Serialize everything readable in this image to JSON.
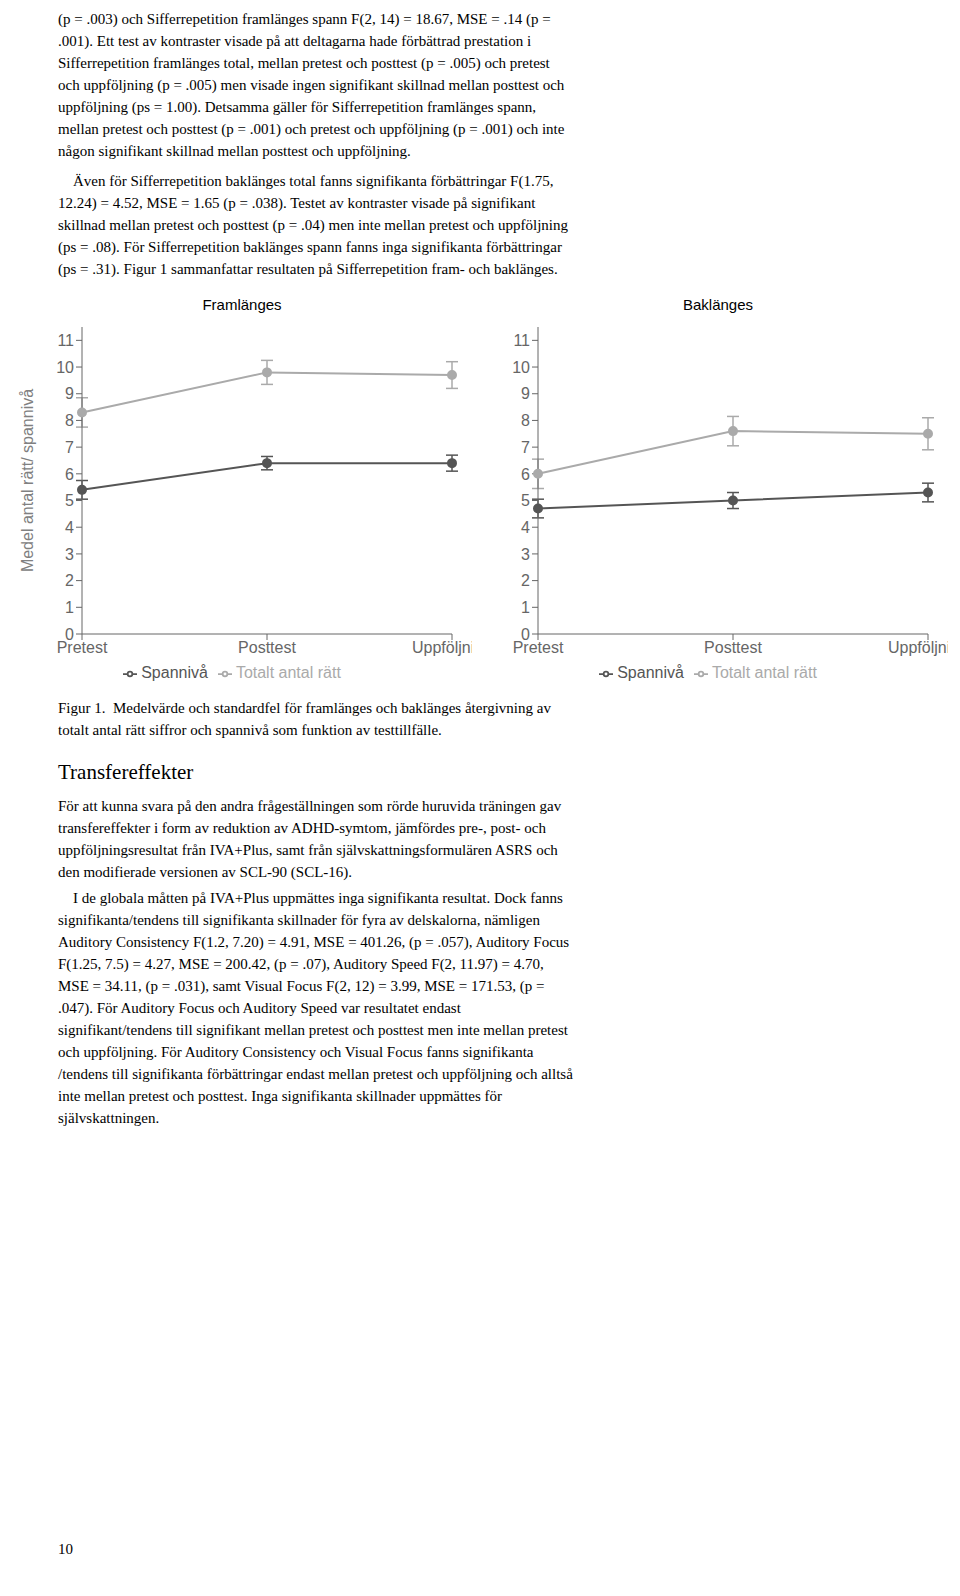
{
  "chart_data": [
    {
      "type": "line",
      "title": "Framlänges",
      "ylabel": "Medel antal rätt/ spannivå",
      "categories": [
        "Pretest",
        "Posttest",
        "Uppföljning"
      ],
      "series": [
        {
          "name": "Spannivå",
          "color": "#555555",
          "marker": "circle",
          "values": [
            5.4,
            6.4,
            6.4
          ],
          "errors": [
            0.35,
            0.25,
            0.3
          ]
        },
        {
          "name": "Totalt antal rätt",
          "color": "#aaaaaa",
          "marker": "circle",
          "values": [
            8.3,
            9.8,
            9.7
          ],
          "errors": [
            0.55,
            0.45,
            0.5
          ]
        }
      ],
      "ylim": [
        0,
        11.5
      ],
      "yticks": [
        0,
        1,
        2,
        3,
        4,
        5,
        6,
        7,
        8,
        9,
        10,
        11
      ],
      "grid": false,
      "legend": "lower center",
      "annotations": [
        "(p = .003) och Sifferrepetition framlänges spann F(2, 14) = 18.67, MSE = .14 (p =\n.001). Ett test av kontraster visade på att deltagarna hade förbättrad prestation i\nSifferrepetition framlänges total, mellan pretest och posttest (p = .005) och pretest\noch uppföljning (p = .005) men visade ingen signifikant skillnad mellan posttest och\nuppföljning (ps = 1.00). Detsamma gäller för Sifferrepetition framlänges spann,\nmellan pretest och posttest (p = .001) och pretest och uppföljning (p = .001) och inte\nnågon signifikant skillnad mellan posttest och uppföljning.",
        "    Även för Sifferrepetition baklänges total fanns signifikanta förbättringar F(1.75,\n12.24) = 4.52, MSE = 1.65 (p = .038). Testet av kontraster visade på signifikant\nskillnad mellan pretest och posttest (p = .04) men inte mellan pretest och uppföljning\n(ps = .08). För Sifferrepetition baklänges spann fanns inga signifikanta förbättringar\n(ps = .31). Figur 1 sammanfattar resultaten på Sifferrepetition fram- och baklänges.",
        "Figur 1.  Medelvärde och standardfel för framlänges och baklänges återgivning av\ntotalt antal rätt siffror och spannivå som funktion av testtillfälle.",
        "Transfereffekter",
        "För att kunna svara på den andra frågeställningen som rörde huruvida träningen gav\ntransfereffekter i form av reduktion av ADHD-symtom, jämfördes pre-, post- och\nuppföljningsresultat från IVA+Plus, samt från självskattningsformulären ASRS och\nden modifierade versionen av SCL-90 (SCL-16).",
        "    I de globala måtten på IVA+Plus uppmättes inga signifikanta resultat. Dock fanns\nsignifikanta/tendens till signifikanta skillnader för fyra av delskalorna, nämligen\nAuditory Consistency F(1.2, 7.20) = 4.91, MSE = 401.26, (p = .057), Auditory Focus\nF(1.25, 7.5) = 4.27, MSE = 200.42, (p = .07), Auditory Speed F(2, 11.97) = 4.70,\nMSE = 34.11, (p = .031), samt Visual Focus F(2, 12) = 3.99, MSE = 171.53, (p =\n.047). För Auditory Focus och Auditory Speed var resultatet endast\nsignifikant/tendens till signifikant mellan pretest och posttest men inte mellan pretest\noch uppföljning. För Auditory Consistency och Visual Focus fanns signifikanta\n/tendens till signifikanta förbättringar endast mellan pretest och uppföljning och alltså\ninte mellan pretest och posttest. Inga signifikanta skillnader uppmättes för\nsjälvskattningen.",
        "10"
      ]
    },
    {
      "type": "line",
      "title": "Baklänges",
      "categories": [
        "Pretest",
        "Posttest",
        "Uppföljning"
      ],
      "series": [
        {
          "name": "Spannivå",
          "color": "#555555",
          "marker": "circle",
          "values": [
            4.7,
            5.0,
            5.3
          ],
          "errors": [
            0.35,
            0.3,
            0.35
          ]
        },
        {
          "name": "Totalt antal rätt",
          "color": "#aaaaaa",
          "marker": "circle",
          "values": [
            6.0,
            7.6,
            7.5
          ],
          "errors": [
            0.55,
            0.55,
            0.6
          ]
        }
      ],
      "ylim": [
        0,
        11.5
      ],
      "yticks": [
        0,
        1,
        2,
        3,
        4,
        5,
        6,
        7,
        8,
        9,
        10,
        11
      ],
      "grid": false,
      "legend": "lower center"
    }
  ]
}
